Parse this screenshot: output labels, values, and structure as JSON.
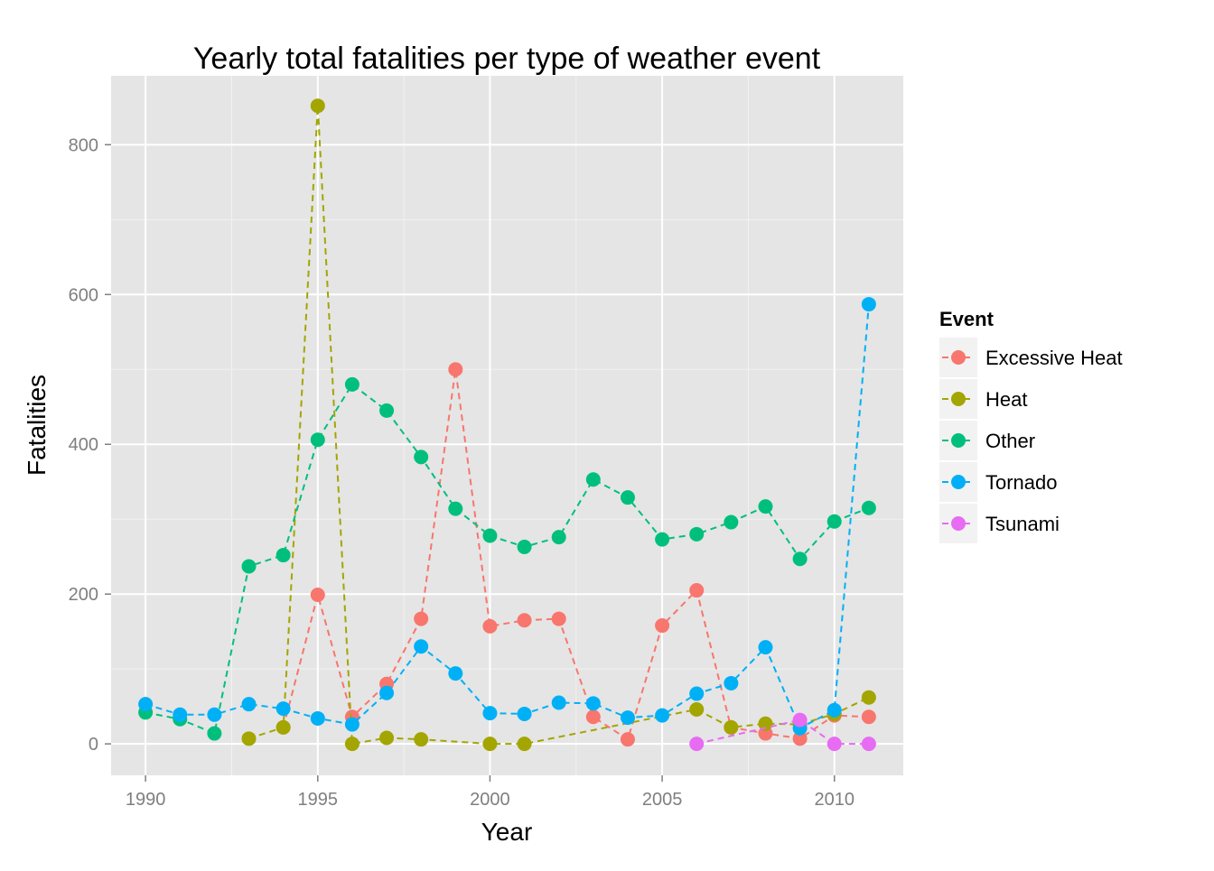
{
  "chart_data": {
    "type": "line",
    "title": "Yearly total fatalities per type of weather event",
    "xlabel": "Year",
    "ylabel": "Fatalities",
    "xlim": [
      1989.0,
      2012.0
    ],
    "ylim": [
      -42,
      892
    ],
    "x_ticks": [
      1990,
      1995,
      2000,
      2005,
      2010
    ],
    "y_ticks": [
      0,
      200,
      400,
      600,
      800
    ],
    "grid": true,
    "legend": {
      "title": "Event",
      "placement": "right"
    },
    "series": [
      {
        "name": "Excessive Heat",
        "color": "#f8766d",
        "points": [
          [
            1994,
            22
          ],
          [
            1995,
            199
          ],
          [
            1996,
            36
          ],
          [
            1997,
            80
          ],
          [
            1998,
            167
          ],
          [
            1999,
            500
          ],
          [
            2000,
            157
          ],
          [
            2001,
            165
          ],
          [
            2002,
            167
          ],
          [
            2003,
            36
          ],
          [
            2004,
            6
          ],
          [
            2005,
            158
          ],
          [
            2006,
            205
          ],
          [
            2007,
            22
          ],
          [
            2008,
            14
          ],
          [
            2009,
            7
          ],
          [
            2010,
            38
          ],
          [
            2011,
            36
          ]
        ]
      },
      {
        "name": "Heat",
        "color": "#a3a500",
        "points": [
          [
            1993,
            7
          ],
          [
            1994,
            22
          ],
          [
            1995,
            852
          ],
          [
            1996,
            0
          ],
          [
            1997,
            8
          ],
          [
            1998,
            6
          ],
          [
            2000,
            0
          ],
          [
            2001,
            0
          ],
          [
            2006,
            46
          ],
          [
            2007,
            22
          ],
          [
            2008,
            27
          ],
          [
            2009,
            26
          ],
          [
            2010,
            40
          ],
          [
            2011,
            62
          ]
        ]
      },
      {
        "name": "Other",
        "color": "#00bf7d",
        "points": [
          [
            1990,
            42
          ],
          [
            1991,
            33
          ],
          [
            1992,
            14
          ],
          [
            1993,
            237
          ],
          [
            1994,
            252
          ],
          [
            1995,
            406
          ],
          [
            1996,
            480
          ],
          [
            1997,
            445
          ],
          [
            1998,
            383
          ],
          [
            1999,
            314
          ],
          [
            2000,
            278
          ],
          [
            2001,
            263
          ],
          [
            2002,
            276
          ],
          [
            2003,
            353
          ],
          [
            2004,
            329
          ],
          [
            2005,
            273
          ],
          [
            2006,
            280
          ],
          [
            2007,
            296
          ],
          [
            2008,
            317
          ],
          [
            2009,
            247
          ],
          [
            2010,
            297
          ],
          [
            2011,
            315
          ]
        ]
      },
      {
        "name": "Tornado",
        "color": "#00b0f6",
        "points": [
          [
            1990,
            53
          ],
          [
            1991,
            39
          ],
          [
            1992,
            39
          ],
          [
            1993,
            53
          ],
          [
            1994,
            47
          ],
          [
            1995,
            34
          ],
          [
            1996,
            26
          ],
          [
            1997,
            68
          ],
          [
            1998,
            130
          ],
          [
            1999,
            94
          ],
          [
            2000,
            41
          ],
          [
            2001,
            40
          ],
          [
            2002,
            55
          ],
          [
            2003,
            54
          ],
          [
            2004,
            35
          ],
          [
            2005,
            38
          ],
          [
            2006,
            67
          ],
          [
            2007,
            81
          ],
          [
            2008,
            129
          ],
          [
            2009,
            21
          ],
          [
            2010,
            45
          ],
          [
            2011,
            587
          ]
        ]
      },
      {
        "name": "Tsunami",
        "color": "#e76bf3",
        "points": [
          [
            2006,
            0
          ],
          [
            2009,
            32
          ],
          [
            2010,
            0
          ],
          [
            2011,
            0
          ]
        ]
      }
    ]
  }
}
